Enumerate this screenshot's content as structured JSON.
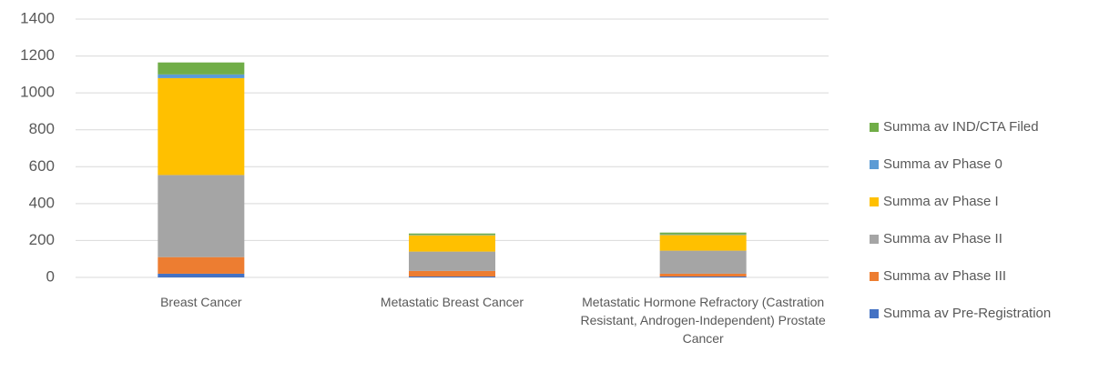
{
  "chart_data": {
    "type": "stacked_bar",
    "categories": [
      "Breast Cancer",
      "Metastatic Breast Cancer",
      "Metastatic Hormone Refractory (Castration Resistant, Androgen-Independent) Prostate Cancer"
    ],
    "series": [
      {
        "name": "Summa av Pre-Registration",
        "color": "#4472c4",
        "values": [
          20,
          5,
          5
        ]
      },
      {
        "name": "Summa av Phase III",
        "color": "#ed7d31",
        "values": [
          90,
          30,
          15
        ]
      },
      {
        "name": "Summa av Phase II",
        "color": "#a5a5a5",
        "values": [
          445,
          105,
          125
        ]
      },
      {
        "name": "Summa av Phase I",
        "color": "#ffc000",
        "values": [
          525,
          88,
          85
        ]
      },
      {
        "name": "Summa av Phase 0",
        "color": "#5b9bd5",
        "values": [
          20,
          2,
          3
        ]
      },
      {
        "name": "Summa av IND/CTA Filed",
        "color": "#70ad47",
        "values": [
          65,
          8,
          10
        ]
      }
    ],
    "ylim": [
      0,
      1400
    ],
    "yticks": [
      0,
      200,
      400,
      600,
      800,
      1000,
      1200,
      1400
    ],
    "grid": true,
    "legend": "right"
  }
}
